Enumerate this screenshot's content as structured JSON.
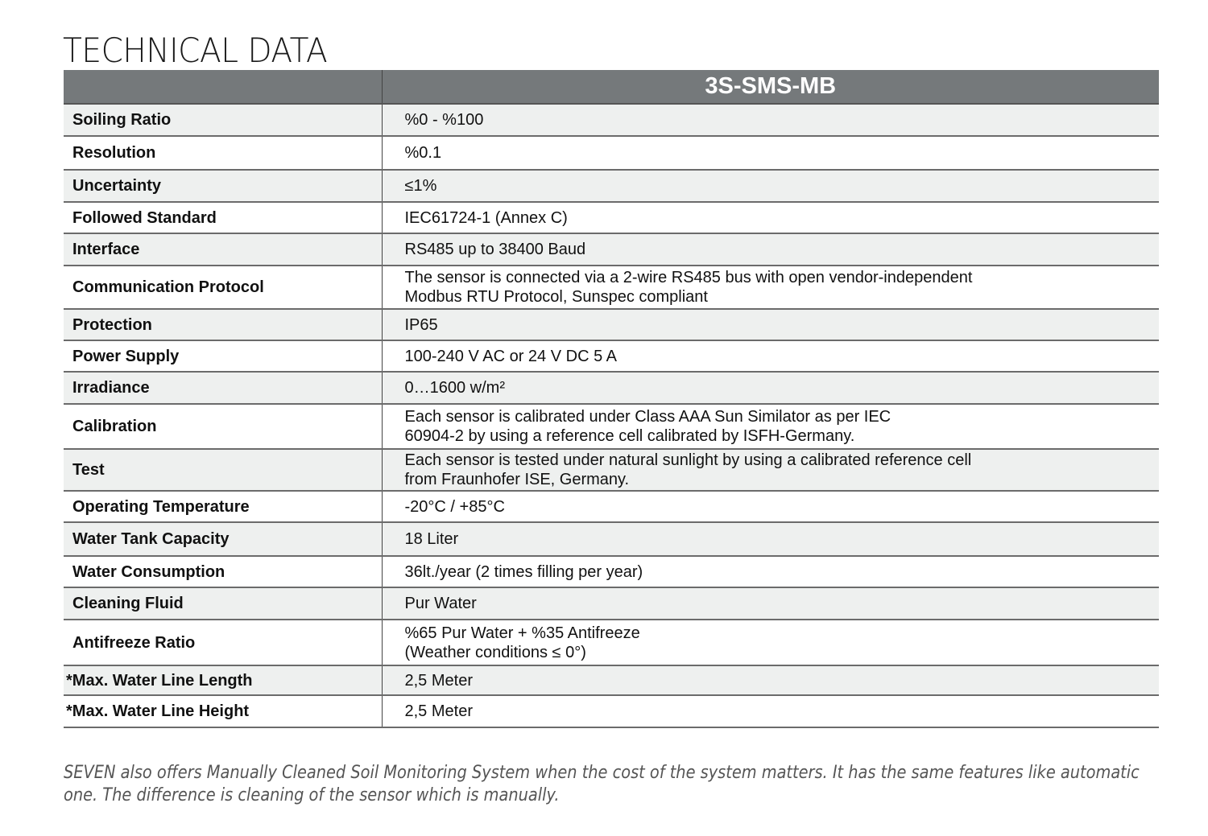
{
  "title": "TECHNICAL DATA",
  "table": {
    "header": [
      "",
      "3S-SMS-MB"
    ],
    "rows": [
      {
        "label": "Soiling Ratio",
        "value": [
          "%0 - %100"
        ]
      },
      {
        "label": "Resolution",
        "value": [
          "%0.1"
        ]
      },
      {
        "label": "Uncertainty",
        "value": [
          "≤1%"
        ]
      },
      {
        "label": "Followed Standard",
        "value": [
          "IEC61724-1 (Annex C)"
        ]
      },
      {
        "label": "Interface",
        "value": [
          "RS485 up to 38400 Baud"
        ]
      },
      {
        "label": "Communication Protocol",
        "value": [
          "The sensor is connected via a 2-wire RS485 bus with open vendor-independent",
          "Modbus RTU Protocol, Sunspec compliant"
        ]
      },
      {
        "label": "Protection",
        "value": [
          "IP65"
        ]
      },
      {
        "label": "Power Supply",
        "value": [
          "100-240 V AC or 24 V DC 5 A"
        ]
      },
      {
        "label": "Irradiance",
        "value": [
          "0…1600 w/m²"
        ]
      },
      {
        "label": "Calibration",
        "value": [
          "Each sensor is calibrated under Class AAA Sun Similator as per IEC",
          "60904-2 by using a reference cell calibrated by ISFH-Germany."
        ]
      },
      {
        "label": "Test",
        "value": [
          "Each sensor is tested under natural sunlight by using a calibrated reference cell",
          "from Fraunhofer ISE, Germany."
        ]
      },
      {
        "label": "Operating Temperature",
        "value": [
          "-20°C / +85°C"
        ]
      },
      {
        "label": "Water Tank Capacity",
        "value": [
          "18 Liter"
        ]
      },
      {
        "label": "Water Consumption",
        "value": [
          "36lt./year (2 times filling per year)"
        ]
      },
      {
        "label": "Cleaning Fluid",
        "value": [
          "Pur Water"
        ]
      },
      {
        "label": "Antifreeze Ratio",
        "value": [
          "%65 Pur Water + %35 Antifreeze",
          "(Weather conditions ≤ 0°)"
        ]
      },
      {
        "label": "*Max. Water Line Length",
        "value": [
          "2,5 Meter"
        ]
      },
      {
        "label": "*Max. Water Line Height",
        "value": [
          "2,5 Meter"
        ]
      }
    ]
  },
  "footnote": "SEVEN also offers Manually Cleaned Soil Monitoring System when the cost of the system matters. It has the same features like automatic one. The difference is cleaning of the sensor which is manually.",
  "colors": {
    "header_bg": "#75797b",
    "row_shade": "#eef0ef"
  }
}
